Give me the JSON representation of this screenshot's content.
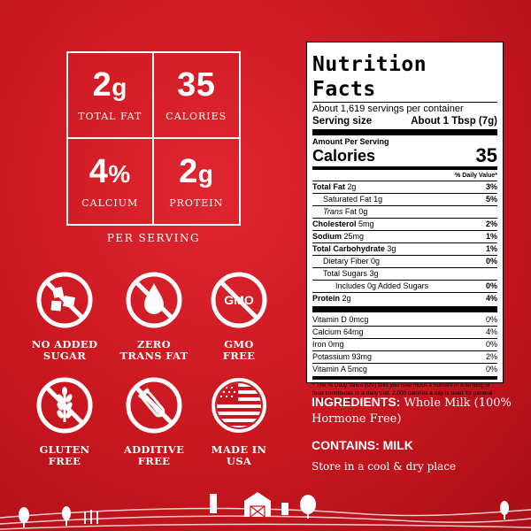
{
  "stats": [
    {
      "num": "2",
      "unit": "g",
      "label": "TOTAL FAT"
    },
    {
      "num": "35",
      "unit": "",
      "label": "CALORIES"
    },
    {
      "num": "4",
      "unit": "%",
      "label": "CALCIUM"
    },
    {
      "num": "2",
      "unit": "g",
      "label": "PROTEIN"
    }
  ],
  "per_serving": "PER SERVING",
  "badges": [
    {
      "label": "NO ADDED\nSUGAR",
      "icon": "no-sugar-icon"
    },
    {
      "label": "ZERO\nTRANS FAT",
      "icon": "no-trans-fat-icon"
    },
    {
      "label": "GMO\nFREE",
      "icon": "no-gmo-icon",
      "icon_text": "GMO"
    },
    {
      "label": "GLUTEN\nFREE",
      "icon": "no-gluten-icon"
    },
    {
      "label": "ADDITIVE\nFREE",
      "icon": "no-additive-icon"
    },
    {
      "label": "MADE IN\nUSA",
      "icon": "usa-flag-icon"
    }
  ],
  "nutrition": {
    "title": "Nutrition Facts",
    "servings_per_container": "About 1,619 servings per container",
    "serving_size_label": "Serving size",
    "serving_size_value": "About 1 Tbsp (7g)",
    "amount_per_serving": "Amount Per Serving",
    "calories_label": "Calories",
    "calories_value": "35",
    "dv_header": "% Daily Value*",
    "rows": [
      {
        "label": "Total Fat",
        "amount": "2g",
        "dv": "3%"
      },
      {
        "label": "Saturated Fat",
        "amount": "1g",
        "dv": "5%"
      },
      {
        "label": "Trans",
        "amount": "Fat 0g",
        "dv": ""
      },
      {
        "label": "Cholesterol",
        "amount": "5mg",
        "dv": "2%"
      },
      {
        "label": "Sodium",
        "amount": "25mg",
        "dv": "1%"
      },
      {
        "label": "Total Carbohydrate",
        "amount": "3g",
        "dv": "1%"
      },
      {
        "label": "Dietary Fiber",
        "amount": "0g",
        "dv": "0%"
      },
      {
        "label": "Total Sugars",
        "amount": "3g",
        "dv": ""
      },
      {
        "label": "Includes 0g Added Sugars",
        "amount": "",
        "dv": "0%"
      },
      {
        "label": "Protein",
        "amount": "2g",
        "dv": "4%"
      }
    ],
    "vitamins": [
      {
        "label": "Vitamin D 0mcg",
        "dv": "0%"
      },
      {
        "label": "Calcium 64mg",
        "dv": "4%"
      },
      {
        "label": "Iron 0mg",
        "dv": "0%"
      },
      {
        "label": "Potassium 93mg",
        "dv": "2%"
      },
      {
        "label": "Vitamin A 5mcg",
        "dv": "0%"
      }
    ],
    "footnote": "* The % Daily Value (DV) tells you how much a nutrient in a serving of food contributes to a daily diet. 2,000 calories a day is used for general nutrition advice."
  },
  "ingredients_label": "INGREDIENTS:",
  "ingredients_text": "Whole Milk (100% Hormone Free)",
  "contains_label": "CONTAINS: MILK",
  "storage": "Store in a cool & dry place",
  "colors": {
    "background": "#c8161f",
    "foreground": "#ffffff"
  }
}
